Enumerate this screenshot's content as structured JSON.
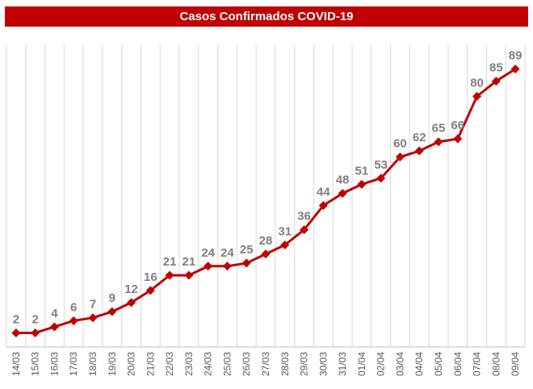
{
  "chart_data": {
    "type": "line",
    "title": "Casos Confirmados COVID-19",
    "categories": [
      "14/03",
      "15/03",
      "16/03",
      "17/03",
      "18/03",
      "19/03",
      "20/03",
      "21/03",
      "22/03",
      "23/03",
      "24/03",
      "25/03",
      "26/03",
      "27/03",
      "28/03",
      "29/03",
      "30/03",
      "31/03",
      "01/04",
      "02/04",
      "03/04",
      "04/04",
      "05/04",
      "06/04",
      "07/04",
      "08/04",
      "09/04"
    ],
    "values": [
      2,
      2,
      4,
      6,
      7,
      9,
      12,
      16,
      21,
      21,
      24,
      24,
      25,
      28,
      31,
      36,
      44,
      48,
      51,
      53,
      60,
      62,
      65,
      66,
      80,
      85,
      89
    ],
    "ylim": [
      0,
      95
    ],
    "grid": "vertical",
    "line_color": "#c00000",
    "marker": "diamond",
    "xlabel": "",
    "ylabel": ""
  },
  "title_bar": {
    "background": "#c00000",
    "text": "Casos Confirmados COVID-19"
  }
}
